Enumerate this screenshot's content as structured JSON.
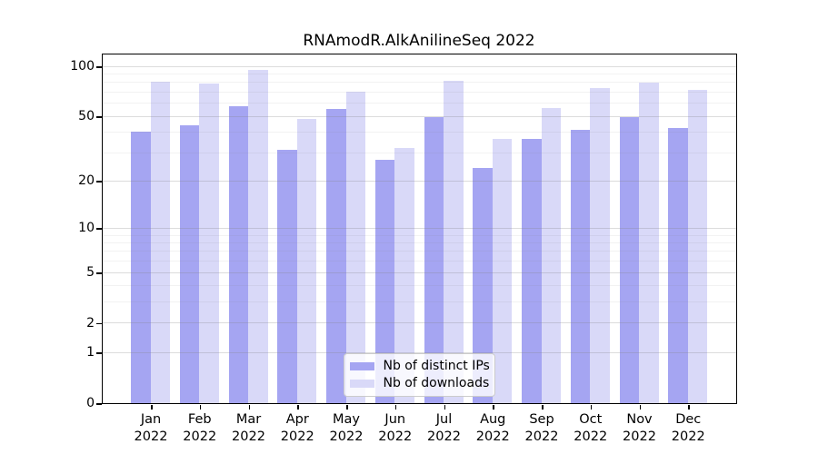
{
  "title": "RNAmodR.AlkAnilineSeq 2022",
  "chart_data": {
    "type": "bar",
    "title": "RNAmodR.AlkAnilineSeq 2022",
    "categories": [
      "Jan",
      "Feb",
      "Mar",
      "Apr",
      "May",
      "Jun",
      "Jul",
      "Aug",
      "Sep",
      "Oct",
      "Nov",
      "Dec"
    ],
    "x_year": "2022",
    "series": [
      {
        "name": "Nb of distinct IPs",
        "color": "#a5a5f2",
        "values": [
          40,
          44,
          57,
          31,
          55,
          27,
          49,
          24,
          36,
          41,
          49,
          42
        ]
      },
      {
        "name": "Nb of downloads",
        "color": "#d9d9f8",
        "values": [
          80,
          78,
          95,
          48,
          70,
          32,
          82,
          36,
          56,
          74,
          79,
          72
        ]
      }
    ],
    "y_ticks": [
      0,
      1,
      2,
      5,
      10,
      20,
      50,
      100
    ],
    "y_minor_gridlines": [
      3,
      4,
      6,
      7,
      8,
      9,
      30,
      40,
      60,
      70,
      80,
      90
    ],
    "y_scale": "log10(1+x)",
    "ylim": [
      0,
      118
    ],
    "xlabel": "",
    "ylabel": "",
    "grid": true,
    "legend_position": "lower-center",
    "colors": {
      "spine": "#000000",
      "grid_major": "#e3e3e3",
      "grid_minor": "#f1f1f1",
      "background": "#ffffff"
    }
  }
}
